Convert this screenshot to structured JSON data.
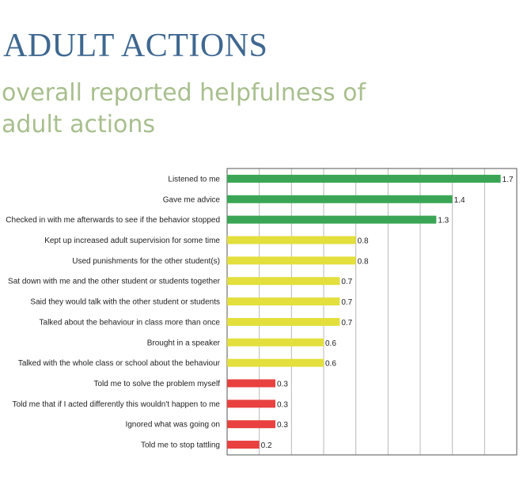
{
  "title": "ADULT ACTIONS",
  "subtitle": "overall reported helpfulness of adult actions",
  "chart_data": {
    "type": "bar",
    "orientation": "horizontal",
    "title": "",
    "xlabel": "",
    "ylabel": "",
    "xlim": [
      0,
      1.8
    ],
    "grid": true,
    "gridStep": 0.2,
    "categories": [
      "Listened to me",
      "Gave me advice",
      "Checked in with me afterwards to see if the behavior stopped",
      "Kept up increased adult supervision for some time",
      "Used punishments for the other student(s)",
      "Sat down with me and the other student or students together",
      "Said they would talk with the other student or students",
      "Talked about the behaviour in class more than once",
      "Brought in a speaker",
      "Talked with the whole class or school about the behaviour",
      "Told me to solve the problem myself",
      "Told me that if I acted differently this wouldn't happen to me",
      "Ignored what was going on",
      "Told me to stop tattling"
    ],
    "values": [
      1.7,
      1.4,
      1.3,
      0.8,
      0.8,
      0.7,
      0.7,
      0.7,
      0.6,
      0.6,
      0.3,
      0.3,
      0.3,
      0.2
    ],
    "data_labels": [
      "1.7",
      "1.4",
      "1.3",
      "0.8",
      "0.8",
      "0.7",
      "0.7",
      "0.7",
      "0.6",
      "0.6",
      "0.3",
      "0.3",
      "0.3",
      "0.2"
    ],
    "bar_colors": [
      "#3aa655",
      "#3aa655",
      "#3aa655",
      "#e3df3c",
      "#e3df3c",
      "#e3df3c",
      "#e3df3c",
      "#e3df3c",
      "#e3df3c",
      "#e3df3c",
      "#e8413f",
      "#e8413f",
      "#e8413f",
      "#e8413f"
    ]
  }
}
